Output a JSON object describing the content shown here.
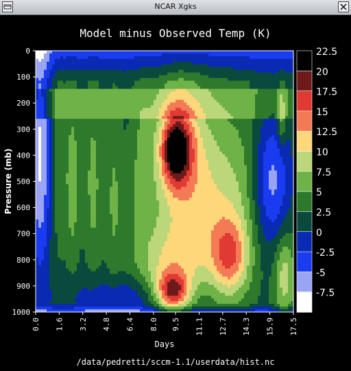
{
  "window": {
    "title": "NCAR Xgks",
    "icon": "window-menu-icon",
    "close_icon": "close-icon"
  },
  "footer": {
    "path": "/data/pedretti/sccm-1.1/userdata/hist.nc"
  },
  "chart_data": {
    "type": "heatmap",
    "title": "Model minus Observed Temp (K)",
    "xlabel": "Days",
    "ylabel": "Pressure (mb)",
    "xlim": [
      0.0,
      17.5
    ],
    "ylim": [
      1000,
      0
    ],
    "x_ticks": [
      "0.0",
      "1.6",
      "3.2",
      "4.8",
      "6.4",
      "8.0",
      "9.5",
      "11.1",
      "12.7",
      "14.3",
      "15.9",
      "17.5"
    ],
    "y_ticks": [
      "0",
      "100",
      "200",
      "300",
      "400",
      "500",
      "600",
      "700",
      "800",
      "900",
      "1000"
    ],
    "legend": {
      "placement": "right",
      "labels": [
        "22.5",
        "20",
        "17.5",
        "15",
        "12.5",
        "10",
        "7.5",
        "5",
        "2.5",
        "0",
        "-2.5",
        "-5",
        "-7.5"
      ],
      "colors": [
        "#000000",
        "#6e1a1a",
        "#e03a32",
        "#f47a55",
        "#fdd77a",
        "#bcd67a",
        "#6fb247",
        "#2e7a2c",
        "#0a4a3c",
        "#0a2ab4",
        "#1a3cf0",
        "#9aa4f4",
        "#ffffff"
      ]
    },
    "features": [
      {
        "x": 9.5,
        "p": 380,
        "value": 21
      },
      {
        "x": 9.3,
        "p": 920,
        "value": 20
      },
      {
        "x": 13.2,
        "p": 800,
        "value": 18
      },
      {
        "x": 2.5,
        "p": 500,
        "value": 12
      },
      {
        "x": 16.0,
        "p": 500,
        "value": -2
      },
      {
        "x": 0.3,
        "p": 400,
        "value": -3
      }
    ]
  }
}
